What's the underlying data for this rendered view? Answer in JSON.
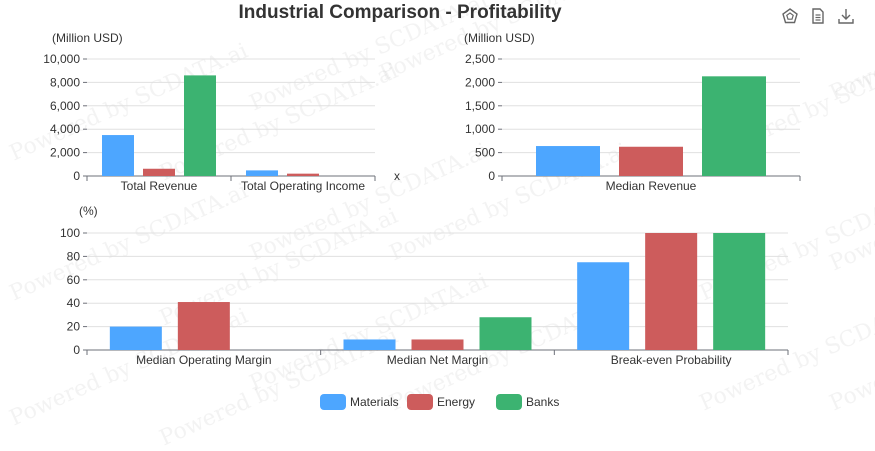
{
  "title": "Industrial Comparison - Profitability",
  "toolbar": {
    "icons": [
      "chart-type-icon",
      "data-view-icon",
      "download-icon"
    ]
  },
  "colors": {
    "Materials": "#4da6ff",
    "Energy": "#cd5c5c",
    "Banks": "#3cb371"
  },
  "watermark": "Powered by SCDATA.ai",
  "legend": [
    "Materials",
    "Energy",
    "Banks"
  ],
  "chart_data": [
    {
      "type": "bar",
      "unit_label": "(Million USD)",
      "categories": [
        "Total Revenue",
        "Total Operating Income"
      ],
      "ylim": [
        0,
        10000
      ],
      "yticks": [
        "0",
        "2,000",
        "4,000",
        "6,000",
        "8,000",
        "10,000"
      ],
      "extra_label": "x",
      "series": [
        {
          "name": "Materials",
          "values": [
            3500,
            480
          ]
        },
        {
          "name": "Energy",
          "values": [
            620,
            200
          ]
        },
        {
          "name": "Banks",
          "values": [
            8600,
            0
          ]
        }
      ]
    },
    {
      "type": "bar",
      "unit_label": "(Million USD)",
      "categories": [
        "Median Revenue"
      ],
      "ylim": [
        0,
        2500
      ],
      "yticks": [
        "0",
        "500",
        "1,000",
        "1,500",
        "2,000",
        "2,500"
      ],
      "series": [
        {
          "name": "Materials",
          "values": [
            640
          ]
        },
        {
          "name": "Energy",
          "values": [
            625
          ]
        },
        {
          "name": "Banks",
          "values": [
            2130
          ]
        }
      ]
    },
    {
      "type": "bar",
      "unit_label": "(%)",
      "categories": [
        "Median Operating Margin",
        "Median Net Margin",
        "Break-even Probability"
      ],
      "ylim": [
        0,
        100
      ],
      "yticks": [
        "0",
        "20",
        "40",
        "60",
        "80",
        "100"
      ],
      "series": [
        {
          "name": "Materials",
          "values": [
            20,
            9,
            75
          ]
        },
        {
          "name": "Energy",
          "values": [
            41,
            9,
            100
          ]
        },
        {
          "name": "Banks",
          "values": [
            0,
            28,
            100
          ]
        }
      ]
    }
  ]
}
